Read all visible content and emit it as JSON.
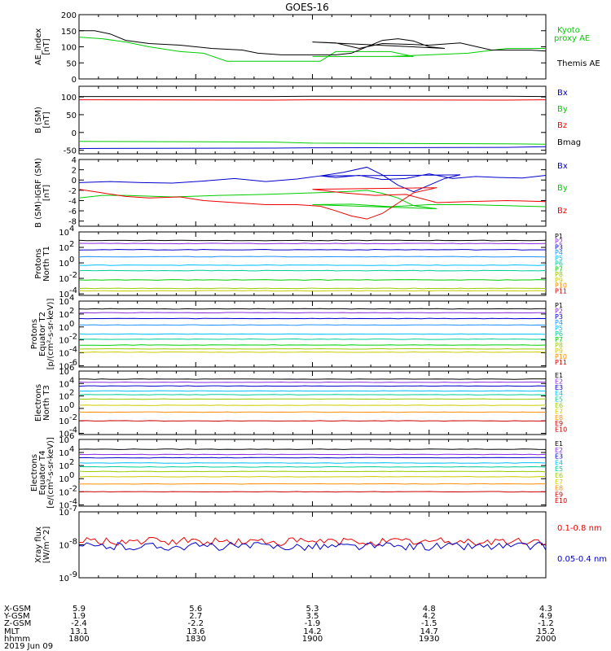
{
  "title": "GOES-16",
  "colors": {
    "black": "#000000",
    "red": "#ee0000",
    "green": "#00cc00",
    "blue": "#0000cc"
  },
  "chart_data": [
    {
      "type": "line",
      "ylabel": "AE_index\n[nT]",
      "ylim": [
        0,
        200
      ],
      "yticks": [
        "0",
        "50",
        "100",
        "150",
        "200"
      ],
      "xlim": [
        1800,
        2000
      ],
      "x_ticks": [
        "1800",
        "1830",
        "1900",
        "1930",
        "2000"
      ],
      "series": [
        {
          "name": "Kyoto\nproxy AE",
          "color": "#00cc00",
          "x": [
            1800,
            1806,
            1812,
            1818,
            1826,
            1832,
            1838,
            1850,
            1858,
            1862,
            1866,
            1880,
            1886,
            1900,
            1910,
            1920,
            1930,
            1940,
            1950,
            2000
          ],
          "y": [
            130,
            125,
            115,
            100,
            85,
            80,
            55,
            55,
            55,
            55,
            85,
            85,
            70,
            70,
            70,
            70,
            75,
            80,
            95,
            95
          ]
        },
        {
          "name": "Themis AE",
          "color": "#000000",
          "x": [
            1800,
            1804,
            1808,
            1812,
            1818,
            1826,
            1834,
            1842,
            1846,
            1852,
            1858,
            1862,
            1866,
            1870,
            1874,
            1878,
            1882,
            1886,
            1890,
            1894,
            1900,
            1906,
            1912,
            1918,
            1924,
            1930,
            1938,
            1946,
            1950,
            1956,
            1962,
            2000
          ],
          "y": [
            150,
            150,
            140,
            120,
            110,
            105,
            95,
            90,
            80,
            75,
            75,
            75,
            75,
            80,
            100,
            120,
            125,
            118,
            100,
            95,
            115,
            112,
            95,
            110,
            108,
            105,
            112,
            90,
            90,
            90,
            85,
            80
          ]
        }
      ]
    },
    {
      "type": "line",
      "ylabel": "B (SM)\n[nT]",
      "ylim": [
        -60,
        130
      ],
      "yticks": [
        "-50",
        "0",
        "50",
        "100"
      ],
      "series": [
        {
          "name": "Bx",
          "color": "#0000cc",
          "x": [
            1800,
            1850,
            1900,
            1950,
            2000
          ],
          "y": [
            -45,
            -44,
            -43,
            -42,
            -40
          ]
        },
        {
          "name": "By",
          "color": "#00cc00",
          "x": [
            1800,
            1850,
            1900,
            1950,
            2000
          ],
          "y": [
            -25,
            -27,
            -30,
            -32,
            -33
          ]
        },
        {
          "name": "Bz",
          "color": "#ee0000",
          "x": [
            1800,
            1850,
            1900,
            1950,
            2000
          ],
          "y": [
            92,
            91,
            92,
            91,
            92
          ]
        },
        {
          "name": "Bmag",
          "color": "#000000",
          "x": [
            1800,
            1850,
            1900,
            1950,
            2000
          ],
          "y": [
            101,
            101,
            102,
            102,
            101
          ]
        }
      ]
    },
    {
      "type": "line",
      "ylabel": "B (SM)-IGRF (SM)\n[nT]",
      "ylim": [
        -9,
        4
      ],
      "yticks": [
        "-8",
        "-6",
        "-4",
        "-2",
        "0",
        "2",
        "4"
      ],
      "series": [
        {
          "name": "Bx",
          "color": "#0000cc",
          "x": [
            1800,
            1808,
            1816,
            1824,
            1832,
            1840,
            1848,
            1856,
            1862,
            1868,
            1874,
            1878,
            1882,
            1886,
            1890,
            1894,
            1898,
            1902,
            1906,
            1912,
            1918,
            1924,
            1930,
            1936,
            1942,
            1948,
            1954,
            1960,
            1970,
            1980,
            2000
          ],
          "y": [
            -0.5,
            -0.3,
            -0.5,
            -0.6,
            -0.2,
            0.3,
            -0.3,
            0.2,
            0.8,
            1.5,
            2.5,
            1.0,
            -1.0,
            -2.3,
            -1.0,
            0.3,
            1.0,
            0.8,
            0.5,
            0.9,
            0.1,
            0.3,
            1.2,
            0.3,
            0.7,
            0.5,
            0.4,
            0.9,
            1.0,
            1.3,
            1.3
          ]
        },
        {
          "name": "By",
          "color": "#00cc00",
          "x": [
            1800,
            1806,
            1812,
            1824,
            1836,
            1848,
            1856,
            1864,
            1870,
            1874,
            1878,
            1882,
            1886,
            1892,
            1900,
            1910,
            1920,
            1930,
            1940,
            1950,
            1960,
            1970,
            1980,
            1990,
            2000
          ],
          "y": [
            -3.5,
            -3.0,
            -3.0,
            -3.3,
            -3.0,
            -2.8,
            -2.6,
            -2.4,
            -2.2,
            -2.0,
            -2.6,
            -3.5,
            -5.0,
            -5.6,
            -4.8,
            -4.7,
            -5.2,
            -4.8,
            -4.8,
            -5.0,
            -5.2,
            -5.3,
            -5.4,
            -5.8,
            -6.0
          ]
        },
        {
          "name": "Bz",
          "color": "#ee0000",
          "x": [
            1800,
            1806,
            1812,
            1818,
            1826,
            1832,
            1840,
            1848,
            1856,
            1862,
            1866,
            1870,
            1874,
            1878,
            1882,
            1886,
            1892,
            1900,
            1908,
            1916,
            1924,
            1932,
            1940,
            1950,
            1960,
            1970,
            1980,
            1990,
            2000
          ],
          "y": [
            -1.8,
            -2.5,
            -3.2,
            -3.5,
            -3.3,
            -4.0,
            -4.4,
            -4.8,
            -4.8,
            -5.1,
            -6.0,
            -7.0,
            -7.6,
            -6.5,
            -4.5,
            -2.5,
            -1.5,
            -1.8,
            -2.5,
            -3.0,
            -2.8,
            -4.4,
            -4.2,
            -4.0,
            -4.2,
            -4.6,
            -4.4,
            -4.6,
            -4.8
          ]
        }
      ]
    },
    {
      "type": "line",
      "log": true,
      "ylabel": "Protons\nNorth T1",
      "ylim": [
        -4.2,
        4
      ],
      "ytick_exps": [
        -4,
        -2,
        0,
        2,
        4
      ],
      "channels": [
        {
          "name": "P1",
          "color": "#000000",
          "level": 2.9
        },
        {
          "name": "P2",
          "color": "#8a2be2",
          "level": 2.5
        },
        {
          "name": "P3",
          "color": "#0000cc",
          "level": 1.7
        },
        {
          "name": "P4",
          "color": "#1e90ff",
          "level": 0.8
        },
        {
          "name": "P5",
          "color": "#00bfff",
          "level": -0.3
        },
        {
          "name": "P6",
          "color": "#00cc99",
          "level": -1.0
        },
        {
          "name": "P7",
          "color": "#00cc00",
          "level": -2.2
        },
        {
          "name": "P8",
          "color": "#99cc00",
          "level": -3.3
        },
        {
          "name": "P9",
          "color": "#cccc00",
          "level": -3.6
        },
        {
          "name": "P10",
          "color": "#ff8c00",
          "level": -9
        },
        {
          "name": "P11",
          "color": "#cc0000",
          "level": -9
        }
      ]
    },
    {
      "type": "line",
      "log": true,
      "ylabel": "Protons\nEquator T2\n[p/(cm²-s-sr-keV)]",
      "ylim": [
        -6.2,
        4
      ],
      "ytick_exps": [
        -6,
        -4,
        -2,
        0,
        2,
        4
      ],
      "channels": [
        {
          "name": "P1",
          "color": "#000000",
          "level": 2.8
        },
        {
          "name": "P2",
          "color": "#8a2be2",
          "level": 2.2
        },
        {
          "name": "P3",
          "color": "#0000cc",
          "level": 1.3
        },
        {
          "name": "P4",
          "color": "#1e90ff",
          "level": 0.3
        },
        {
          "name": "P5",
          "color": "#00bfff",
          "level": -1.1
        },
        {
          "name": "P6",
          "color": "#00cc99",
          "level": -1.9
        },
        {
          "name": "P7",
          "color": "#00cc00",
          "level": -2.8
        },
        {
          "name": "P8",
          "color": "#99cc00",
          "level": -3.4
        },
        {
          "name": "P9",
          "color": "#cccc00",
          "level": -3.9
        },
        {
          "name": "P10",
          "color": "#ff8c00",
          "level": -9
        },
        {
          "name": "P11",
          "color": "#cc0000",
          "level": -9
        }
      ]
    },
    {
      "type": "line",
      "log": true,
      "ylabel": "Electrons\nNorth T3",
      "ylim": [
        -4.2,
        6
      ],
      "ytick_exps": [
        -4,
        -2,
        0,
        2,
        4,
        6
      ],
      "channels": [
        {
          "name": "E1",
          "color": "#000000",
          "level": 4.7
        },
        {
          "name": "E2",
          "color": "#8a2be2",
          "level": 4.2
        },
        {
          "name": "E3",
          "color": "#0000cc",
          "level": 3.6
        },
        {
          "name": "E4",
          "color": "#00bfff",
          "level": 2.8
        },
        {
          "name": "E5",
          "color": "#00cc99",
          "level": 2.2
        },
        {
          "name": "E6",
          "color": "#99cc00",
          "level": 1.5
        },
        {
          "name": "E7",
          "color": "#cccc00",
          "level": 0.5
        },
        {
          "name": "E8",
          "color": "#ff8c00",
          "level": -0.6
        },
        {
          "name": "E9",
          "color": "#cc0000",
          "level": -2.0
        },
        {
          "name": "E10",
          "color": "#cc0000",
          "level": -9
        }
      ]
    },
    {
      "type": "line",
      "log": true,
      "ylabel": "Electrons\nEquator T4\n[e/(cm²-s-sr-keV)]",
      "ylim": [
        -4.2,
        6
      ],
      "ytick_exps": [
        -4,
        -2,
        0,
        2,
        4,
        6
      ],
      "channels": [
        {
          "name": "E1",
          "color": "#000000",
          "level": 4.5
        },
        {
          "name": "E2",
          "color": "#8a2be2",
          "level": 3.7
        },
        {
          "name": "E3",
          "color": "#0000cc",
          "level": 3.2
        },
        {
          "name": "E4",
          "color": "#00bfff",
          "level": 2.4
        },
        {
          "name": "E5",
          "color": "#00cc99",
          "level": 1.8
        },
        {
          "name": "E6",
          "color": "#99cc00",
          "level": 1.1
        },
        {
          "name": "E7",
          "color": "#cccc00",
          "level": 0.3
        },
        {
          "name": "E8",
          "color": "#ff8c00",
          "level": -0.8
        },
        {
          "name": "E9",
          "color": "#cc0000",
          "level": -2.0
        },
        {
          "name": "E10",
          "color": "#cc0000",
          "level": -9
        }
      ]
    },
    {
      "type": "line",
      "log": true,
      "ylabel": "Xray flux\n[W/m^2]",
      "ylim": [
        -9,
        -7
      ],
      "ytick_exps": [
        -9,
        -8,
        -7
      ],
      "series": [
        {
          "name": "0.1-0.8 nm",
          "color": "#ee0000",
          "level": -7.9
        },
        {
          "name": "0.05-0.4 nm",
          "color": "#0000cc",
          "level": -8.05
        }
      ]
    }
  ],
  "x_ticks": [
    "1800",
    "1830",
    "1900",
    "1930",
    "2000"
  ],
  "ephemeris": {
    "labels": [
      "X-GSM",
      "Y-GSM",
      "Z-GSM",
      "MLT",
      "hhmm",
      "2019 Jun 09"
    ],
    "columns": [
      {
        "x": "5.9",
        "y": "1.9",
        "z": "-2.4",
        "mlt": "13.1",
        "hhmm": "1800"
      },
      {
        "x": "5.6",
        "y": "2.7",
        "z": "-2.2",
        "mlt": "13.6",
        "hhmm": "1830"
      },
      {
        "x": "5.3",
        "y": "3.5",
        "z": "-1.9",
        "mlt": "14.2",
        "hhmm": "1900"
      },
      {
        "x": "4.8",
        "y": "4.2",
        "z": "-1.5",
        "mlt": "14.7",
        "hhmm": "1930"
      },
      {
        "x": "4.3",
        "y": "4.9",
        "z": "-1.2",
        "mlt": "15.2",
        "hhmm": "2000"
      }
    ]
  }
}
